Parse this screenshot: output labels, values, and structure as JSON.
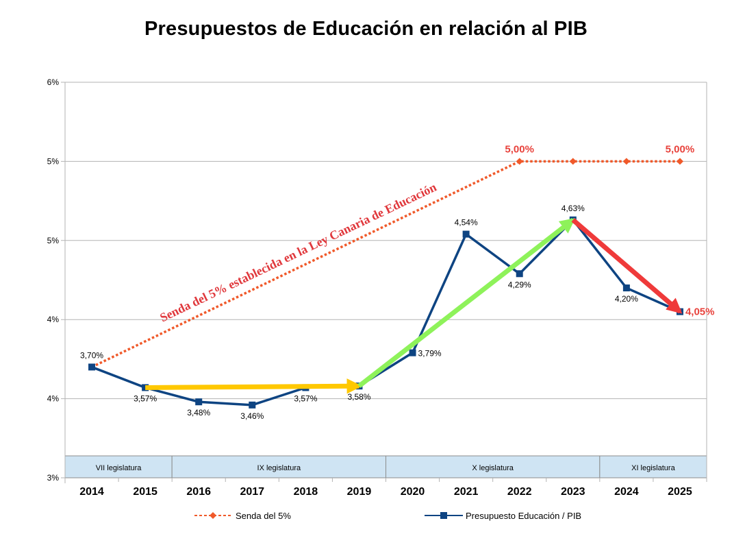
{
  "chart_data": {
    "type": "line",
    "title": "Presupuestos de Educación en relación al PIB",
    "xlabel": "",
    "ylabel": "",
    "categories": [
      "2014",
      "2015",
      "2016",
      "2017",
      "2018",
      "2019",
      "2020",
      "2021",
      "2022",
      "2023",
      "2024",
      "2025"
    ],
    "ylim": [
      3.0,
      5.5
    ],
    "yticks": [
      3.0,
      3.5,
      4.0,
      4.5,
      5.0,
      5.5
    ],
    "ytick_labels": [
      "3%",
      "4%",
      "4%",
      "5%",
      "5%",
      "6%"
    ],
    "grid": true,
    "legend_position": "bottom",
    "series": [
      {
        "name": "Senda del 5%",
        "color": "#f0592a",
        "style": "dotted",
        "marker": "diamond",
        "values": [
          3.7,
          null,
          null,
          null,
          null,
          null,
          null,
          null,
          5.0,
          5.0,
          5.0,
          5.0
        ],
        "markers_at": [
          8,
          9,
          10,
          11
        ],
        "labels": [
          {
            "index": 8,
            "text": "5,00%"
          },
          {
            "index": 11,
            "text": "5,00%"
          }
        ]
      },
      {
        "name": "Presupuesto Educación / PIB",
        "color": "#0e4482",
        "style": "solid",
        "marker": "square",
        "values": [
          3.7,
          3.57,
          3.48,
          3.46,
          3.57,
          3.58,
          3.79,
          4.54,
          4.29,
          4.63,
          4.2,
          4.05
        ],
        "labels": [
          "3,70%",
          "3,57%",
          "3,48%",
          "3,46%",
          "3,57%",
          "3,58%",
          "3,79%",
          "4,54%",
          "4,29%",
          "4,63%",
          "4,20%",
          "4,05%"
        ]
      }
    ],
    "annotations": {
      "senda_text": "Senda del 5% establecida en la Ley Canaria de Educación",
      "arrows": [
        {
          "name": "yellow-arrow",
          "color": "#ffc800",
          "from": [
            1,
            3.57
          ],
          "to": [
            5,
            3.58
          ]
        },
        {
          "name": "green-arrow",
          "color": "#8ef25a",
          "from": [
            5,
            3.58
          ],
          "to": [
            9,
            4.63
          ]
        },
        {
          "name": "red-arrow",
          "color": "#ef3a3a",
          "from": [
            9,
            4.63
          ],
          "to": [
            11,
            4.05
          ]
        }
      ]
    },
    "legislaturas": [
      {
        "label": "VII legislatura",
        "start": 0,
        "end": 1
      },
      {
        "label": "IX legislatura",
        "start": 2,
        "end": 5
      },
      {
        "label": "X legislatura",
        "start": 6,
        "end": 9
      },
      {
        "label": "XI legislatura",
        "start": 10,
        "end": 11
      }
    ]
  }
}
